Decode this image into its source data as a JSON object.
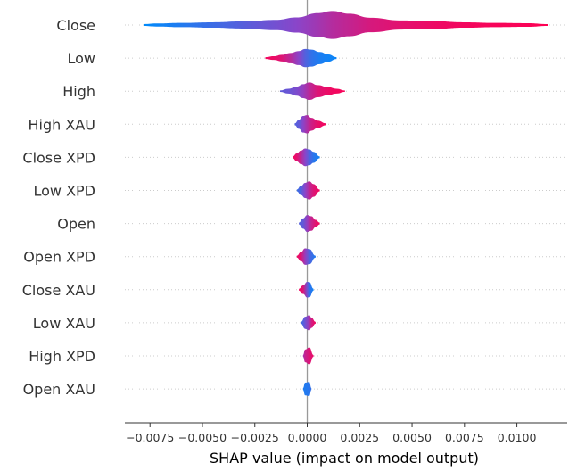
{
  "chart_data": {
    "type": "violin",
    "title": "",
    "xlabel": "SHAP value (impact on model output)",
    "ylabel": "",
    "xlim": [
      -0.0087,
      0.0124
    ],
    "x_ticks": [
      -0.0075,
      -0.005,
      -0.0025,
      0.0,
      0.0025,
      0.005,
      0.0075,
      0.01
    ],
    "x_tick_labels": [
      "−0.0075",
      "−0.0050",
      "−0.0025",
      "0.0000",
      "0.0025",
      "0.0050",
      "0.0075",
      "0.0100"
    ],
    "zero_line": 0.0,
    "grid": "horizontal-dotted",
    "colors": {
      "low": "#008bfb",
      "high": "#ff0052",
      "mid": "#8a45c9",
      "zero_line": "#999999"
    },
    "features": [
      {
        "name": "Close",
        "x_range": [
          -0.0078,
          0.0115
        ],
        "profile": [
          [
            -0.0078,
            0.06,
            0.0
          ],
          [
            -0.0072,
            0.1,
            0.04
          ],
          [
            -0.006,
            0.14,
            0.12
          ],
          [
            -0.0045,
            0.18,
            0.22
          ],
          [
            -0.003,
            0.24,
            0.32
          ],
          [
            -0.0015,
            0.34,
            0.42
          ],
          [
            -0.0005,
            0.5,
            0.5
          ],
          [
            0.0005,
            0.78,
            0.6
          ],
          [
            0.0012,
            0.92,
            0.68
          ],
          [
            0.002,
            0.74,
            0.74
          ],
          [
            0.003,
            0.48,
            0.82
          ],
          [
            0.0045,
            0.3,
            0.88
          ],
          [
            0.006,
            0.26,
            0.92
          ],
          [
            0.0075,
            0.18,
            0.95
          ],
          [
            0.009,
            0.14,
            0.97
          ],
          [
            0.0105,
            0.12,
            0.98
          ],
          [
            0.0115,
            0.06,
            1.0
          ]
        ]
      },
      {
        "name": "Low",
        "x_range": [
          -0.002,
          0.0014
        ],
        "profile": [
          [
            -0.002,
            0.06,
            0.95
          ],
          [
            -0.0016,
            0.12,
            0.92
          ],
          [
            -0.0012,
            0.22,
            0.85
          ],
          [
            -0.0008,
            0.34,
            0.7
          ],
          [
            -0.0004,
            0.46,
            0.5
          ],
          [
            -0.0001,
            0.6,
            0.3
          ],
          [
            0.0002,
            0.56,
            0.18
          ],
          [
            0.0006,
            0.4,
            0.1
          ],
          [
            0.001,
            0.24,
            0.06
          ],
          [
            0.0014,
            0.06,
            0.04
          ]
        ]
      },
      {
        "name": "High",
        "x_range": [
          -0.0013,
          0.0018
        ],
        "profile": [
          [
            -0.0013,
            0.05,
            0.35
          ],
          [
            -0.0009,
            0.16,
            0.38
          ],
          [
            -0.0005,
            0.3,
            0.45
          ],
          [
            -0.0002,
            0.46,
            0.55
          ],
          [
            0.0001,
            0.58,
            0.7
          ],
          [
            0.0005,
            0.4,
            0.85
          ],
          [
            0.001,
            0.26,
            0.92
          ],
          [
            0.0014,
            0.16,
            0.95
          ],
          [
            0.0018,
            0.05,
            0.97
          ]
        ]
      },
      {
        "name": "High XAU",
        "x_range": [
          -0.0006,
          0.0009
        ],
        "profile": [
          [
            -0.0006,
            0.06,
            0.3
          ],
          [
            -0.0004,
            0.3,
            0.35
          ],
          [
            -0.0002,
            0.55,
            0.5
          ],
          [
            0.0,
            0.6,
            0.65
          ],
          [
            0.0002,
            0.42,
            0.78
          ],
          [
            0.0005,
            0.24,
            0.9
          ],
          [
            0.0009,
            0.06,
            0.95
          ]
        ]
      },
      {
        "name": "Close XPD",
        "x_range": [
          -0.0007,
          0.0006
        ],
        "profile": [
          [
            -0.0007,
            0.06,
            0.95
          ],
          [
            -0.0005,
            0.26,
            0.88
          ],
          [
            -0.0003,
            0.44,
            0.7
          ],
          [
            -0.0001,
            0.58,
            0.5
          ],
          [
            0.0001,
            0.52,
            0.3
          ],
          [
            0.0003,
            0.36,
            0.15
          ],
          [
            0.0006,
            0.06,
            0.06
          ]
        ]
      },
      {
        "name": "Low XPD",
        "x_range": [
          -0.0005,
          0.0006
        ],
        "profile": [
          [
            -0.0005,
            0.06,
            0.2
          ],
          [
            -0.0003,
            0.3,
            0.3
          ],
          [
            -0.0001,
            0.5,
            0.5
          ],
          [
            0.0001,
            0.6,
            0.7
          ],
          [
            0.0003,
            0.42,
            0.85
          ],
          [
            0.0006,
            0.06,
            0.95
          ]
        ]
      },
      {
        "name": "Open",
        "x_range": [
          -0.0004,
          0.0006
        ],
        "profile": [
          [
            -0.0004,
            0.06,
            0.3
          ],
          [
            -0.0002,
            0.34,
            0.35
          ],
          [
            0.0,
            0.56,
            0.55
          ],
          [
            0.0002,
            0.48,
            0.75
          ],
          [
            0.0004,
            0.24,
            0.88
          ],
          [
            0.0006,
            0.06,
            0.95
          ]
        ]
      },
      {
        "name": "Open XPD",
        "x_range": [
          -0.0005,
          0.0004
        ],
        "profile": [
          [
            -0.0005,
            0.06,
            0.95
          ],
          [
            -0.0003,
            0.3,
            0.85
          ],
          [
            -0.0001,
            0.54,
            0.55
          ],
          [
            0.0001,
            0.5,
            0.3
          ],
          [
            0.0004,
            0.06,
            0.1
          ]
        ]
      },
      {
        "name": "Close XAU",
        "x_range": [
          -0.0004,
          0.0003
        ],
        "profile": [
          [
            -0.0004,
            0.06,
            0.95
          ],
          [
            -0.0002,
            0.28,
            0.85
          ],
          [
            0.0,
            0.52,
            0.4
          ],
          [
            0.0001,
            0.5,
            0.2
          ],
          [
            0.0003,
            0.06,
            0.05
          ]
        ]
      },
      {
        "name": "Low XAU",
        "x_range": [
          -0.0003,
          0.0004
        ],
        "profile": [
          [
            -0.0003,
            0.06,
            0.2
          ],
          [
            -0.0001,
            0.4,
            0.4
          ],
          [
            0.0001,
            0.5,
            0.6
          ],
          [
            0.0002,
            0.34,
            0.8
          ],
          [
            0.0004,
            0.06,
            0.95
          ]
        ]
      },
      {
        "name": "High XPD",
        "x_range": [
          -0.0002,
          0.0003
        ],
        "profile": [
          [
            -0.0002,
            0.06,
            0.6
          ],
          [
            -0.0001,
            0.42,
            0.75
          ],
          [
            0.0001,
            0.56,
            0.85
          ],
          [
            0.0003,
            0.06,
            0.9
          ]
        ]
      },
      {
        "name": "Open XAU",
        "x_range": [
          -0.0002,
          0.0002
        ],
        "profile": [
          [
            -0.0002,
            0.06,
            0.1
          ],
          [
            -0.0001,
            0.42,
            0.12
          ],
          [
            0.0001,
            0.46,
            0.15
          ],
          [
            0.0002,
            0.06,
            0.2
          ]
        ]
      }
    ]
  }
}
